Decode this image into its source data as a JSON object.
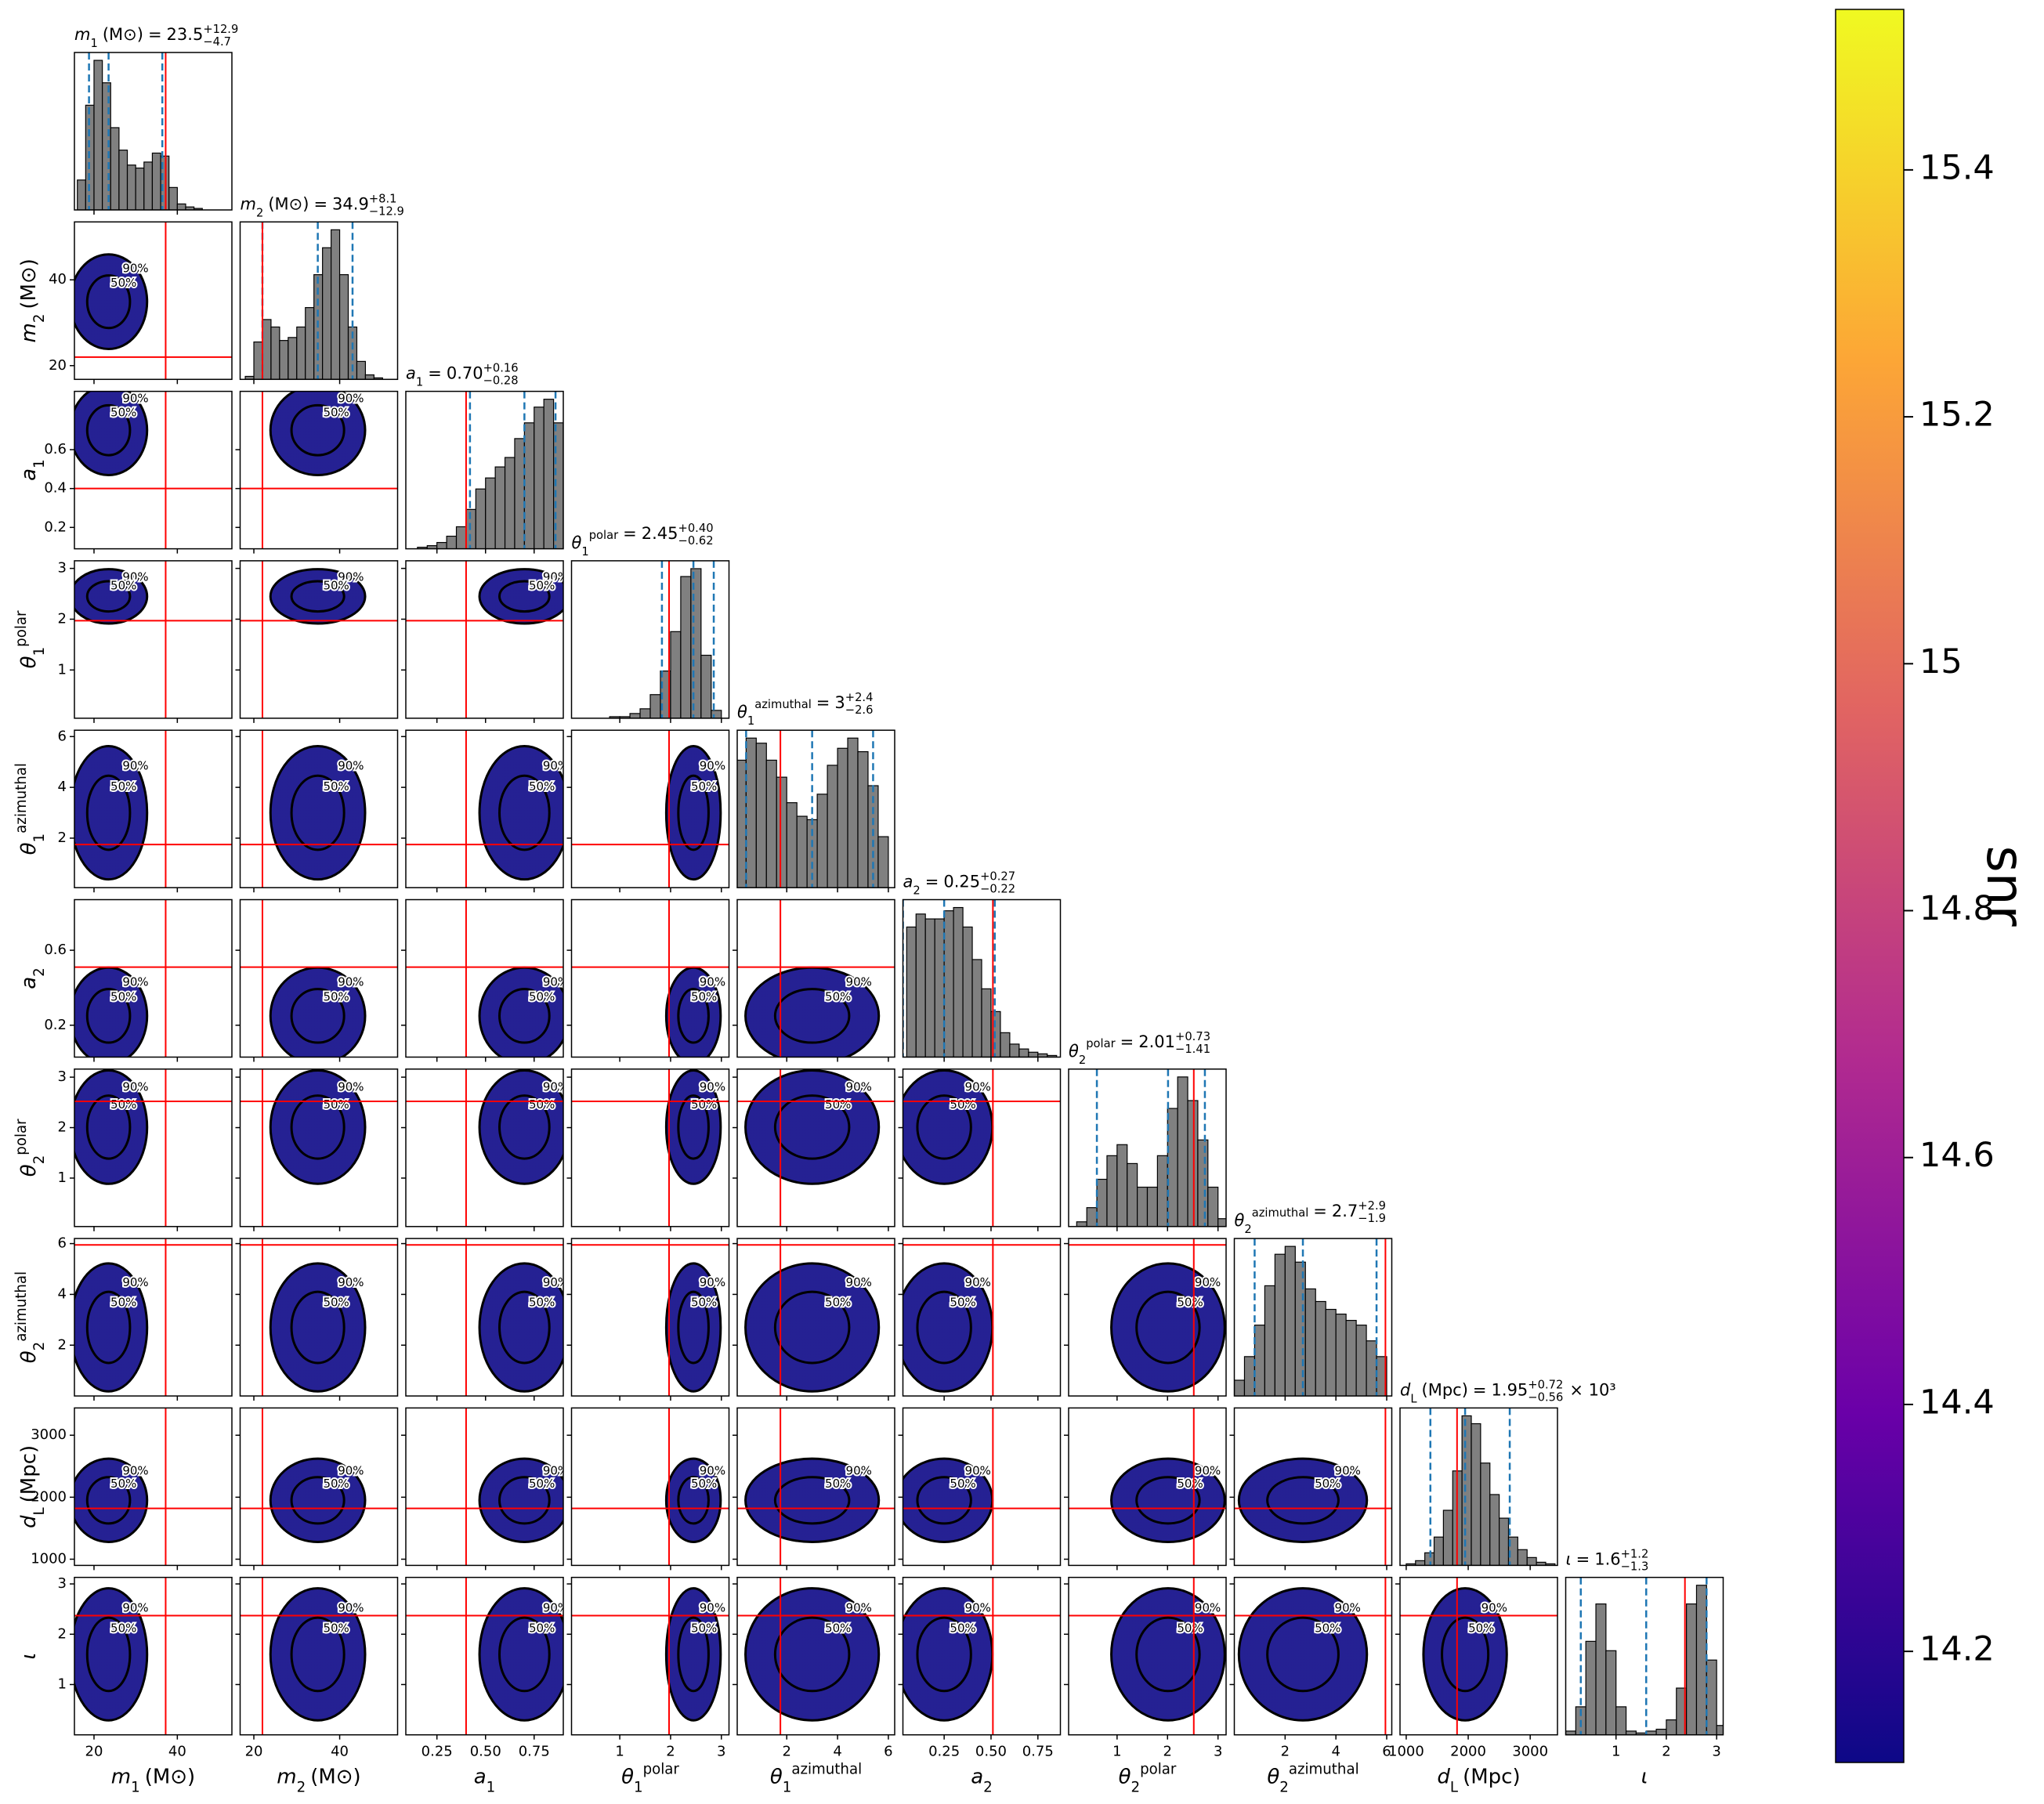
{
  "chart_data": {
    "type": "corner",
    "equals": "=",
    "hist_color": "#808080",
    "quantile_color": "#1f77b4",
    "truth_color": "#ff0000",
    "contour_color": "#000000",
    "contour_levels": [
      {
        "value": 50,
        "label": "50%"
      },
      {
        "value": 90,
        "label": "90%"
      }
    ],
    "parameters": [
      {
        "symbol": "m",
        "sub": "1",
        "unit": "(M⊙)",
        "lim": [
          15.3,
          53.1
        ],
        "xticks": [
          20,
          40
        ],
        "yticks": [
          20,
          40
        ],
        "median": 23.5,
        "err_plus": {
          "value": 12.9,
          "label": "+12.9"
        },
        "err_minus": {
          "value": 4.7,
          "label": "−4.7"
        },
        "truth": 37.2,
        "bins": [
          16,
          18,
          20,
          22,
          24,
          26,
          28,
          30,
          32,
          34,
          36,
          38,
          40,
          42,
          44,
          46,
          48
        ],
        "counts": [
          20,
          70,
          100,
          85,
          55,
          40,
          30,
          28,
          32,
          38,
          36,
          15,
          4,
          2,
          1,
          0
        ]
      },
      {
        "symbol": "m",
        "sub": "2",
        "unit": "(M⊙)",
        "lim": [
          16.8,
          53.5
        ],
        "xticks": [
          20,
          40
        ],
        "yticks": [
          20,
          40
        ],
        "median": 34.9,
        "err_plus": {
          "value": 8.1,
          "label": "+8.1"
        },
        "err_minus": {
          "value": 12.9,
          "label": "−12.9"
        },
        "truth": 22,
        "bins": [
          18,
          20,
          22,
          24,
          26,
          28,
          30,
          32,
          34,
          36,
          38,
          40,
          42,
          44,
          46,
          48,
          50
        ],
        "counts": [
          2,
          25,
          40,
          35,
          26,
          28,
          35,
          48,
          70,
          88,
          100,
          70,
          35,
          12,
          3,
          1
        ]
      },
      {
        "symbol": "a",
        "sub": "1",
        "lim": [
          0.09,
          0.9
        ],
        "xticks": [
          0.25,
          {
            "value": 0.5,
            "label": "0.50"
          },
          0.75
        ],
        "yticks": [
          0.2,
          0.4,
          0.6
        ],
        "median": {
          "value": 0.7,
          "label": "0.70"
        },
        "err_plus": {
          "value": 0.16,
          "label": "+0.16"
        },
        "err_minus": {
          "value": 0.28,
          "label": "−0.28"
        },
        "truth": 0.4,
        "bins": [
          0.1,
          0.15,
          0.2,
          0.25,
          0.3,
          0.35,
          0.4,
          0.45,
          0.5,
          0.55,
          0.6,
          0.65,
          0.7,
          0.75,
          0.8,
          0.85,
          0.9
        ],
        "counts": [
          0,
          1,
          2,
          4,
          8,
          14,
          25,
          38,
          45,
          52,
          58,
          70,
          80,
          90,
          95,
          80
        ]
      },
      {
        "symbol": "θ",
        "sub": "1",
        "sup": "polar",
        "lim": [
          0.05,
          3.15
        ],
        "xticks": [
          1,
          2,
          3
        ],
        "yticks": [
          1,
          2,
          3
        ],
        "median": 2.45,
        "err_plus": {
          "value": 0.4,
          "label": "+0.40"
        },
        "err_minus": {
          "value": 0.62,
          "label": "−0.62"
        },
        "truth": 1.97,
        "bins": [
          0.2,
          0.4,
          0.6,
          0.8,
          1.0,
          1.2,
          1.4,
          1.6,
          1.8,
          2.0,
          2.2,
          2.4,
          2.6,
          2.8,
          3.0,
          3.2
        ],
        "counts": [
          0,
          0,
          0,
          1,
          1,
          3,
          6,
          15,
          30,
          55,
          90,
          95,
          40,
          5,
          0
        ]
      },
      {
        "symbol": "θ",
        "sub": "1",
        "sup": "azimuthal",
        "lim": [
          0.05,
          6.25
        ],
        "xticks": [
          2,
          4,
          6
        ],
        "yticks": [
          2,
          4,
          6
        ],
        "median": 3,
        "err_plus": {
          "value": 2.4,
          "label": "+2.4"
        },
        "err_minus": {
          "value": 2.6,
          "label": "−2.6"
        },
        "truth": 1.75,
        "bins": [
          0,
          0.4,
          0.8,
          1.2,
          1.6,
          2.0,
          2.4,
          2.8,
          3.2,
          3.6,
          4.0,
          4.4,
          4.8,
          5.2,
          5.6,
          6.0
        ],
        "counts": [
          75,
          88,
          85,
          75,
          65,
          50,
          42,
          40,
          55,
          72,
          82,
          88,
          80,
          60,
          30
        ]
      },
      {
        "symbol": "a",
        "sub": "2",
        "lim": [
          0.03,
          0.87
        ],
        "xticks": [
          0.25,
          {
            "value": 0.5,
            "label": "0.50"
          },
          0.75
        ],
        "yticks": [
          0.2,
          0.6
        ],
        "median": 0.25,
        "err_plus": {
          "value": 0.27,
          "label": "+0.27"
        },
        "err_minus": {
          "value": 0.22,
          "label": "−0.22"
        },
        "truth": 0.51,
        "bins": [
          0.05,
          0.1,
          0.15,
          0.2,
          0.25,
          0.3,
          0.35,
          0.4,
          0.45,
          0.5,
          0.55,
          0.6,
          0.65,
          0.7,
          0.75,
          0.8,
          0.85
        ],
        "counts": [
          80,
          88,
          85,
          85,
          90,
          92,
          80,
          60,
          42,
          28,
          15,
          8,
          5,
          3,
          2,
          1
        ]
      },
      {
        "symbol": "θ",
        "sub": "2",
        "sup": "polar",
        "lim": [
          0.04,
          3.16
        ],
        "xticks": [
          1,
          2,
          3
        ],
        "yticks": [
          1,
          2,
          3
        ],
        "median": 2.01,
        "err_plus": {
          "value": 0.73,
          "label": "+0.73"
        },
        "err_minus": {
          "value": 1.41,
          "label": "−1.41"
        },
        "truth": 2.52,
        "bins": [
          0.2,
          0.4,
          0.6,
          0.8,
          1.0,
          1.2,
          1.4,
          1.6,
          1.8,
          2.0,
          2.2,
          2.4,
          2.6,
          2.8,
          3.0,
          3.2
        ],
        "counts": [
          3,
          12,
          30,
          45,
          52,
          40,
          25,
          25,
          45,
          75,
          95,
          80,
          55,
          25,
          5
        ]
      },
      {
        "symbol": "θ",
        "sub": "2",
        "sup": "azimuthal",
        "lim": [
          0,
          6.2
        ],
        "xticks": [
          2,
          4,
          6
        ],
        "yticks": [
          2,
          4,
          6
        ],
        "median": 2.7,
        "err_plus": {
          "value": 2.9,
          "label": "+2.9"
        },
        "err_minus": {
          "value": 1.9,
          "label": "−1.9"
        },
        "truth": 5.95,
        "bins": [
          0,
          0.4,
          0.8,
          1.2,
          1.6,
          2.0,
          2.4,
          2.8,
          3.2,
          3.6,
          4.0,
          4.4,
          4.8,
          5.2,
          5.6,
          6.0
        ],
        "counts": [
          10,
          25,
          45,
          70,
          90,
          95,
          85,
          68,
          60,
          55,
          52,
          48,
          45,
          35,
          25
        ]
      },
      {
        "symbol": "d",
        "sub": "L",
        "unit": "(Mpc)",
        "lim": [
          900,
          3440
        ],
        "xticks": [
          1000,
          2000,
          3000
        ],
        "yticks": [
          1000,
          2000,
          3000
        ],
        "median": {
          "value": 1950,
          "label": "1.95"
        },
        "err_plus": {
          "value": 720,
          "label": "+0.72"
        },
        "err_minus": {
          "value": 560,
          "label": "−0.56"
        },
        "title_suffix": "× 10³",
        "truth": 1820,
        "bins": [
          1000,
          1150,
          1300,
          1450,
          1600,
          1750,
          1900,
          2050,
          2200,
          2350,
          2500,
          2650,
          2800,
          2950,
          3100,
          3250,
          3400
        ],
        "counts": [
          1,
          3,
          8,
          18,
          35,
          60,
          95,
          90,
          65,
          45,
          30,
          18,
          10,
          5,
          2,
          1
        ]
      },
      {
        "symbol": "ι",
        "lim": [
          0,
          3.13
        ],
        "xticks": [
          1,
          2,
          3
        ],
        "yticks": [
          1,
          2,
          3
        ],
        "median": 1.6,
        "err_plus": {
          "value": 1.2,
          "label": "+1.2"
        },
        "err_minus": {
          "value": 1.3,
          "label": "−1.3"
        },
        "truth": 2.37,
        "bins": [
          0,
          0.2,
          0.4,
          0.6,
          0.8,
          1.0,
          1.2,
          1.4,
          1.6,
          1.8,
          2.0,
          2.2,
          2.4,
          2.6,
          2.8,
          3.0,
          3.2
        ],
        "counts": [
          2,
          15,
          50,
          70,
          45,
          15,
          2,
          1,
          2,
          3,
          8,
          25,
          70,
          80,
          40,
          5
        ]
      }
    ],
    "colorbar": {
      "label": "snr",
      "lim": [
        14.11,
        15.53
      ],
      "ticks": [
        14.2,
        14.4,
        14.6,
        14.8,
        15.0,
        15.2,
        15.4
      ],
      "colors": [
        "#0d0887",
        "#6a00a8",
        "#b12a90",
        "#e16462",
        "#fca636",
        "#f0f921"
      ]
    }
  }
}
